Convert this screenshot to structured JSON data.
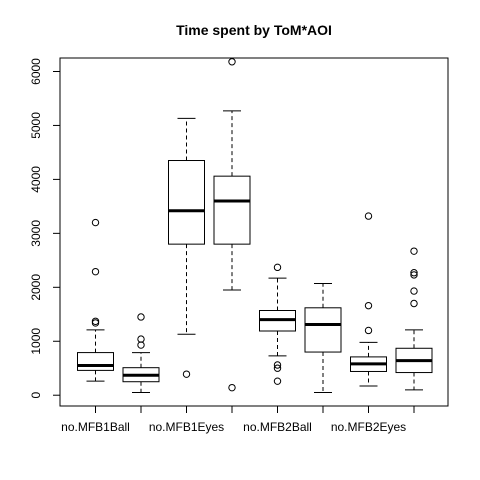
{
  "chart_data": {
    "type": "boxplot",
    "title": "Time spent by ToM*AOI",
    "xlabel": "",
    "ylabel": "",
    "ylim": [
      -200,
      6250
    ],
    "y_ticks": [
      0,
      1000,
      2000,
      3000,
      4000,
      5000,
      6000
    ],
    "x_tick_labels": [
      "no.MFB1Ball",
      "no.MFB1Eyes",
      "no.MFB2Ball",
      "no.MFB2Eyes"
    ],
    "boxes": [
      {
        "group": 1,
        "whisker_low": 260,
        "q1": 460,
        "median": 550,
        "q3": 790,
        "whisker_high": 1210,
        "outliers": [
          1340,
          1370,
          2290,
          3200
        ]
      },
      {
        "group": 2,
        "whisker_low": 50,
        "q1": 250,
        "median": 370,
        "q3": 510,
        "whisker_high": 790,
        "outliers": [
          930,
          1040,
          1450
        ]
      },
      {
        "group": 3,
        "whisker_low": 1130,
        "q1": 2800,
        "median": 3420,
        "q3": 4350,
        "whisker_high": 5130,
        "outliers": [
          390
        ]
      },
      {
        "group": 4,
        "whisker_low": 1950,
        "q1": 2800,
        "median": 3600,
        "q3": 4060,
        "whisker_high": 5270,
        "outliers": [
          140,
          6180
        ]
      },
      {
        "group": 5,
        "whisker_low": 730,
        "q1": 1190,
        "median": 1400,
        "q3": 1570,
        "whisker_high": 2170,
        "outliers": [
          260,
          500,
          560,
          2370
        ]
      },
      {
        "group": 6,
        "whisker_low": 50,
        "q1": 800,
        "median": 1310,
        "q3": 1620,
        "whisker_high": 2070,
        "outliers": []
      },
      {
        "group": 7,
        "whisker_low": 170,
        "q1": 440,
        "median": 580,
        "q3": 710,
        "whisker_high": 980,
        "outliers": [
          1200,
          1660,
          3320
        ]
      },
      {
        "group": 8,
        "whisker_low": 100,
        "q1": 420,
        "median": 640,
        "q3": 870,
        "whisker_high": 1210,
        "outliers": [
          1700,
          1930,
          2230,
          2270,
          2670
        ]
      }
    ]
  }
}
